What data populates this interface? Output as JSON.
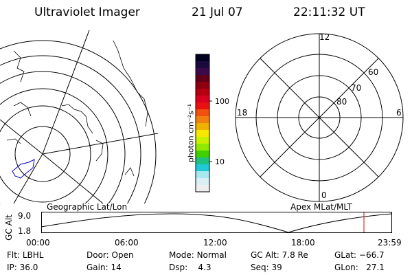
{
  "header": {
    "instrument": "Ultraviolet Imager",
    "date": "21 Jul 07",
    "time": "22:11:32 UT"
  },
  "left_panel": {
    "label": "Geographic Lat/Lon"
  },
  "right_panel": {
    "label": "Apex MLat/MLT",
    "mlt_labels": {
      "top": "12",
      "left": "18",
      "right": "6",
      "bottom": "0"
    },
    "lat_labels": [
      "60",
      "70",
      "80"
    ]
  },
  "colorbar": {
    "unit_label": "photon cm⁻²s⁻¹",
    "tick_labels": [
      "100",
      "10"
    ],
    "colors": [
      "#000020",
      "#1a0a3c",
      "#3a0a4a",
      "#600018",
      "#8c0010",
      "#b40010",
      "#d80020",
      "#e81010",
      "#f05010",
      "#f08010",
      "#f0b000",
      "#f8e800",
      "#c8f000",
      "#90e800",
      "#40d000",
      "#20c080",
      "#20c8d8",
      "#a8e8f0",
      "#d8f0f4",
      "#eeeeee"
    ]
  },
  "altitude_plot": {
    "ylabel": "GC Alt",
    "y_ticks": [
      "9.0",
      "1.8"
    ],
    "x_ticks": [
      "00:00",
      "06:00",
      "12:00",
      "18:00",
      "23:59"
    ],
    "marker_color": "#dd0000"
  },
  "info": {
    "filter": {
      "label": "Flt:",
      "value": "LBHL"
    },
    "ip": {
      "label": "IP:",
      "value": "36.0"
    },
    "door": {
      "label": "Door:",
      "value": "Open"
    },
    "gain": {
      "label": "Gain:",
      "value": "14"
    },
    "mode": {
      "label": "Mode:",
      "value": "Normal"
    },
    "dsp": {
      "label": "Dsp:",
      "value": "4.3"
    },
    "gc_alt": {
      "label": "GC Alt:",
      "value": "7.8 Re"
    },
    "seq": {
      "label": "Seq:",
      "value": "39"
    },
    "glat": {
      "label": "GLat:",
      "value": "−66.7"
    },
    "glon": {
      "label": "GLon:",
      "value": "27.1"
    }
  }
}
